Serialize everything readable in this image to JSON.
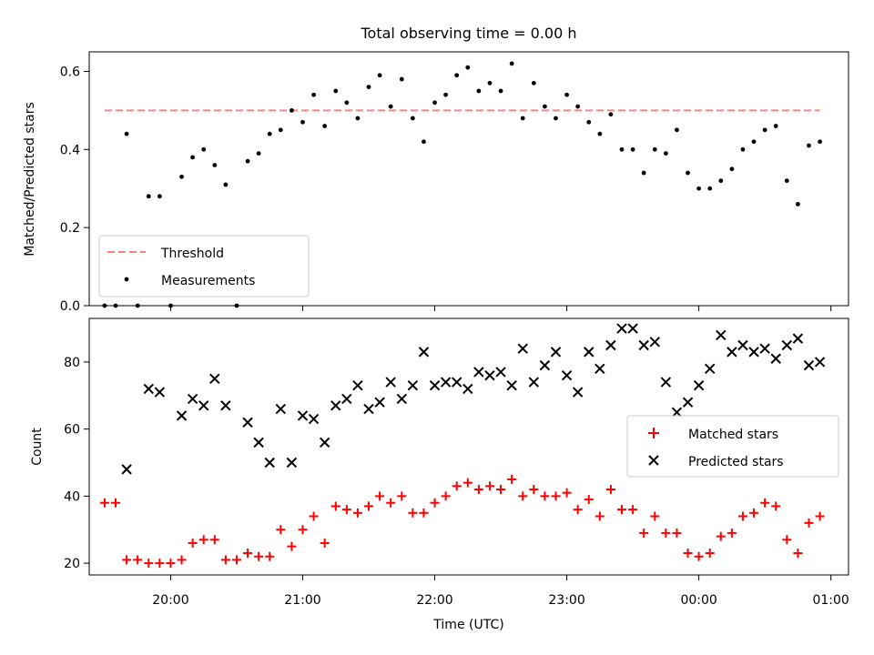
{
  "chart_data": [
    {
      "type": "scatter",
      "title": "Total observing time = 0.00 h",
      "xlabel": "",
      "ylabel": "Matched/Predicted stars",
      "xlim": [
        "19:23",
        "01:08"
      ],
      "ylim": [
        0,
        0.65
      ],
      "yticks": [
        0.0,
        0.2,
        0.4,
        0.6
      ],
      "ytick_labels": [
        "0.0",
        "0.2",
        "0.4",
        "0.6"
      ],
      "legend": {
        "position": "lower-left",
        "entries": [
          "Threshold",
          "Measurements"
        ]
      },
      "threshold": {
        "name": "Threshold",
        "y": 0.5,
        "x_start": "19:30",
        "x_end": "00:55",
        "color": "#ff7f7f"
      },
      "series": [
        {
          "name": "Measurements",
          "color": "#000000",
          "marker": "dot",
          "points": [
            [
              "19:30",
              0
            ],
            [
              "19:35",
              0
            ],
            [
              "19:40",
              0.44
            ],
            [
              "19:45",
              0
            ],
            [
              "19:50",
              0.28
            ],
            [
              "19:55",
              0.28
            ],
            [
              "20:00",
              0
            ],
            [
              "20:05",
              0.33
            ],
            [
              "20:10",
              0.38
            ],
            [
              "20:15",
              0.4
            ],
            [
              "20:20",
              0.36
            ],
            [
              "20:25",
              0.31
            ],
            [
              "20:30",
              0
            ],
            [
              "20:35",
              0.37
            ],
            [
              "20:40",
              0.39
            ],
            [
              "20:45",
              0.44
            ],
            [
              "20:50",
              0.45
            ],
            [
              "20:55",
              0.5
            ],
            [
              "21:00",
              0.47
            ],
            [
              "21:05",
              0.54
            ],
            [
              "21:10",
              0.46
            ],
            [
              "21:15",
              0.55
            ],
            [
              "21:20",
              0.52
            ],
            [
              "21:25",
              0.48
            ],
            [
              "21:30",
              0.56
            ],
            [
              "21:35",
              0.59
            ],
            [
              "21:40",
              0.51
            ],
            [
              "21:45",
              0.58
            ],
            [
              "21:50",
              0.48
            ],
            [
              "21:55",
              0.42
            ],
            [
              "22:00",
              0.52
            ],
            [
              "22:05",
              0.54
            ],
            [
              "22:10",
              0.59
            ],
            [
              "22:15",
              0.61
            ],
            [
              "22:20",
              0.55
            ],
            [
              "22:25",
              0.57
            ],
            [
              "22:30",
              0.55
            ],
            [
              "22:35",
              0.62
            ],
            [
              "22:40",
              0.48
            ],
            [
              "22:45",
              0.57
            ],
            [
              "22:50",
              0.51
            ],
            [
              "22:55",
              0.48
            ],
            [
              "23:00",
              0.54
            ],
            [
              "23:05",
              0.51
            ],
            [
              "23:10",
              0.47
            ],
            [
              "23:15",
              0.44
            ],
            [
              "23:20",
              0.49
            ],
            [
              "23:25",
              0.4
            ],
            [
              "23:30",
              0.4
            ],
            [
              "23:35",
              0.34
            ],
            [
              "23:40",
              0.4
            ],
            [
              "23:45",
              0.39
            ],
            [
              "23:50",
              0.45
            ],
            [
              "23:55",
              0.34
            ],
            [
              "00:00",
              0.3
            ],
            [
              "00:05",
              0.3
            ],
            [
              "00:10",
              0.32
            ],
            [
              "00:15",
              0.35
            ],
            [
              "00:20",
              0.4
            ],
            [
              "00:25",
              0.42
            ],
            [
              "00:30",
              0.45
            ],
            [
              "00:35",
              0.46
            ],
            [
              "00:40",
              0.32
            ],
            [
              "00:45",
              0.26
            ],
            [
              "00:50",
              0.41
            ],
            [
              "00:55",
              0.42
            ]
          ]
        }
      ]
    },
    {
      "type": "scatter",
      "title": "",
      "xlabel": "Time (UTC)",
      "ylabel": "Count",
      "xlim": [
        "19:23",
        "01:08"
      ],
      "ylim": [
        16.5,
        93
      ],
      "yticks": [
        20,
        40,
        60,
        80
      ],
      "ytick_labels": [
        "20",
        "40",
        "60",
        "80"
      ],
      "xticks": [
        "20:00",
        "21:00",
        "22:00",
        "23:00",
        "00:00",
        "01:00"
      ],
      "legend": {
        "position": "center-right",
        "entries": [
          "Matched stars",
          "Predicted stars"
        ]
      },
      "series": [
        {
          "name": "Matched stars",
          "color": "#ff0000",
          "marker": "plus",
          "points": [
            [
              "19:30",
              38
            ],
            [
              "19:35",
              38
            ],
            [
              "19:40",
              21
            ],
            [
              "19:45",
              21
            ],
            [
              "19:50",
              20
            ],
            [
              "19:55",
              20
            ],
            [
              "20:00",
              20
            ],
            [
              "20:05",
              21
            ],
            [
              "20:10",
              26
            ],
            [
              "20:15",
              27
            ],
            [
              "20:20",
              27
            ],
            [
              "20:25",
              21
            ],
            [
              "20:30",
              21
            ],
            [
              "20:35",
              23
            ],
            [
              "20:40",
              22
            ],
            [
              "20:45",
              22
            ],
            [
              "20:50",
              30
            ],
            [
              "20:55",
              25
            ],
            [
              "21:00",
              30
            ],
            [
              "21:05",
              34
            ],
            [
              "21:10",
              26
            ],
            [
              "21:15",
              37
            ],
            [
              "21:20",
              36
            ],
            [
              "21:25",
              35
            ],
            [
              "21:30",
              37
            ],
            [
              "21:35",
              40
            ],
            [
              "21:40",
              38
            ],
            [
              "21:45",
              40
            ],
            [
              "21:50",
              35
            ],
            [
              "21:55",
              35
            ],
            [
              "22:00",
              38
            ],
            [
              "22:05",
              40
            ],
            [
              "22:10",
              43
            ],
            [
              "22:15",
              44
            ],
            [
              "22:20",
              42
            ],
            [
              "22:25",
              43
            ],
            [
              "22:30",
              42
            ],
            [
              "22:35",
              45
            ],
            [
              "22:40",
              40
            ],
            [
              "22:45",
              42
            ],
            [
              "22:50",
              40
            ],
            [
              "22:55",
              40
            ],
            [
              "23:00",
              41
            ],
            [
              "23:05",
              36
            ],
            [
              "23:10",
              39
            ],
            [
              "23:15",
              34
            ],
            [
              "23:20",
              42
            ],
            [
              "23:25",
              36
            ],
            [
              "23:30",
              36
            ],
            [
              "23:35",
              29
            ],
            [
              "23:40",
              34
            ],
            [
              "23:45",
              29
            ],
            [
              "23:50",
              29
            ],
            [
              "23:55",
              23
            ],
            [
              "00:00",
              22
            ],
            [
              "00:05",
              23
            ],
            [
              "00:10",
              28
            ],
            [
              "00:15",
              29
            ],
            [
              "00:20",
              34
            ],
            [
              "00:25",
              35
            ],
            [
              "00:30",
              38
            ],
            [
              "00:35",
              37
            ],
            [
              "00:40",
              27
            ],
            [
              "00:45",
              23
            ],
            [
              "00:50",
              32
            ],
            [
              "00:55",
              34
            ]
          ]
        },
        {
          "name": "Predicted stars",
          "color": "#000000",
          "marker": "x",
          "points": [
            [
              "19:40",
              48
            ],
            [
              "19:50",
              72
            ],
            [
              "19:55",
              71
            ],
            [
              "20:05",
              64
            ],
            [
              "20:10",
              69
            ],
            [
              "20:15",
              67
            ],
            [
              "20:20",
              75
            ],
            [
              "20:25",
              67
            ],
            [
              "20:35",
              62
            ],
            [
              "20:40",
              56
            ],
            [
              "20:45",
              50
            ],
            [
              "20:50",
              66
            ],
            [
              "20:55",
              50
            ],
            [
              "21:00",
              64
            ],
            [
              "21:05",
              63
            ],
            [
              "21:10",
              56
            ],
            [
              "21:15",
              67
            ],
            [
              "21:20",
              69
            ],
            [
              "21:25",
              73
            ],
            [
              "21:30",
              66
            ],
            [
              "21:35",
              68
            ],
            [
              "21:40",
              74
            ],
            [
              "21:45",
              69
            ],
            [
              "21:50",
              73
            ],
            [
              "21:55",
              83
            ],
            [
              "22:00",
              73
            ],
            [
              "22:05",
              74
            ],
            [
              "22:10",
              74
            ],
            [
              "22:15",
              72
            ],
            [
              "22:20",
              77
            ],
            [
              "22:25",
              76
            ],
            [
              "22:30",
              77
            ],
            [
              "22:35",
              73
            ],
            [
              "22:40",
              84
            ],
            [
              "22:45",
              74
            ],
            [
              "22:50",
              79
            ],
            [
              "22:55",
              83
            ],
            [
              "23:00",
              76
            ],
            [
              "23:05",
              71
            ],
            [
              "23:10",
              83
            ],
            [
              "23:15",
              78
            ],
            [
              "23:20",
              85
            ],
            [
              "23:25",
              90
            ],
            [
              "23:30",
              90
            ],
            [
              "23:35",
              85
            ],
            [
              "23:40",
              86
            ],
            [
              "23:45",
              74
            ],
            [
              "23:50",
              65
            ],
            [
              "23:55",
              68
            ],
            [
              "00:00",
              73
            ],
            [
              "00:05",
              78
            ],
            [
              "00:10",
              88
            ],
            [
              "00:15",
              83
            ],
            [
              "00:20",
              85
            ],
            [
              "00:25",
              83
            ],
            [
              "00:30",
              84
            ],
            [
              "00:35",
              81
            ],
            [
              "00:40",
              85
            ],
            [
              "00:45",
              87
            ],
            [
              "00:50",
              79
            ],
            [
              "00:55",
              80
            ]
          ]
        }
      ]
    }
  ]
}
